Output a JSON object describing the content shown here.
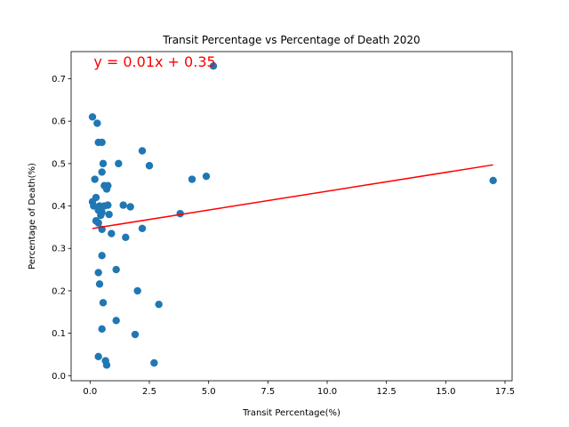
{
  "chart_data": {
    "type": "scatter",
    "title": "Transit Percentage vs Percentage of Death 2020",
    "xlabel": "Transit Percentage(%)",
    "ylabel": "Percentage of Death(%)",
    "xlim": [
      -0.8,
      17.8
    ],
    "ylim": [
      -0.012,
      0.764
    ],
    "xticks": [
      0.0,
      2.5,
      5.0,
      7.5,
      10.0,
      12.5,
      15.0,
      17.5
    ],
    "xtick_labels": [
      "0.0",
      "2.5",
      "5.0",
      "7.5",
      "10.0",
      "12.5",
      "15.0",
      "17.5"
    ],
    "yticks": [
      0.0,
      0.1,
      0.2,
      0.3,
      0.4,
      0.5,
      0.6,
      0.7
    ],
    "ytick_labels": [
      "0.0",
      "0.1",
      "0.2",
      "0.3",
      "0.4",
      "0.5",
      "0.6",
      "0.7"
    ],
    "grid": false,
    "legend": false,
    "series": [
      {
        "color": "#1f77b4",
        "points": [
          [
            5.2,
            0.73
          ],
          [
            0.1,
            0.61
          ],
          [
            0.3,
            0.595
          ],
          [
            0.35,
            0.55
          ],
          [
            0.5,
            0.55
          ],
          [
            2.2,
            0.53
          ],
          [
            0.55,
            0.5
          ],
          [
            1.2,
            0.5
          ],
          [
            2.5,
            0.495
          ],
          [
            0.5,
            0.48
          ],
          [
            4.9,
            0.47
          ],
          [
            4.3,
            0.463
          ],
          [
            0.2,
            0.463
          ],
          [
            17.0,
            0.46
          ],
          [
            0.6,
            0.448
          ],
          [
            0.75,
            0.448
          ],
          [
            0.7,
            0.44
          ],
          [
            0.25,
            0.42
          ],
          [
            0.1,
            0.41
          ],
          [
            1.4,
            0.402
          ],
          [
            0.15,
            0.4
          ],
          [
            0.4,
            0.4
          ],
          [
            0.6,
            0.4
          ],
          [
            0.75,
            0.402
          ],
          [
            1.7,
            0.398
          ],
          [
            0.35,
            0.39
          ],
          [
            0.5,
            0.385
          ],
          [
            0.45,
            0.378
          ],
          [
            0.8,
            0.38
          ],
          [
            3.8,
            0.382
          ],
          [
            0.25,
            0.365
          ],
          [
            0.35,
            0.36
          ],
          [
            0.5,
            0.345
          ],
          [
            2.2,
            0.347
          ],
          [
            0.9,
            0.335
          ],
          [
            1.5,
            0.326
          ],
          [
            0.5,
            0.283
          ],
          [
            1.1,
            0.25
          ],
          [
            0.35,
            0.243
          ],
          [
            0.4,
            0.216
          ],
          [
            2.0,
            0.2
          ],
          [
            0.55,
            0.172
          ],
          [
            2.9,
            0.168
          ],
          [
            1.1,
            0.13
          ],
          [
            0.5,
            0.11
          ],
          [
            1.9,
            0.097
          ],
          [
            0.35,
            0.045
          ],
          [
            0.65,
            0.035
          ],
          [
            2.7,
            0.03
          ],
          [
            0.7,
            0.025
          ]
        ]
      }
    ],
    "fit_line": {
      "color": "#ff0000",
      "x": [
        0.1,
        17.0
      ],
      "y": [
        0.347,
        0.497
      ]
    },
    "annotation": {
      "text": "y = 0.01x + 0.35",
      "color": "#ff0000",
      "x": 0.15,
      "y": 0.728
    }
  }
}
